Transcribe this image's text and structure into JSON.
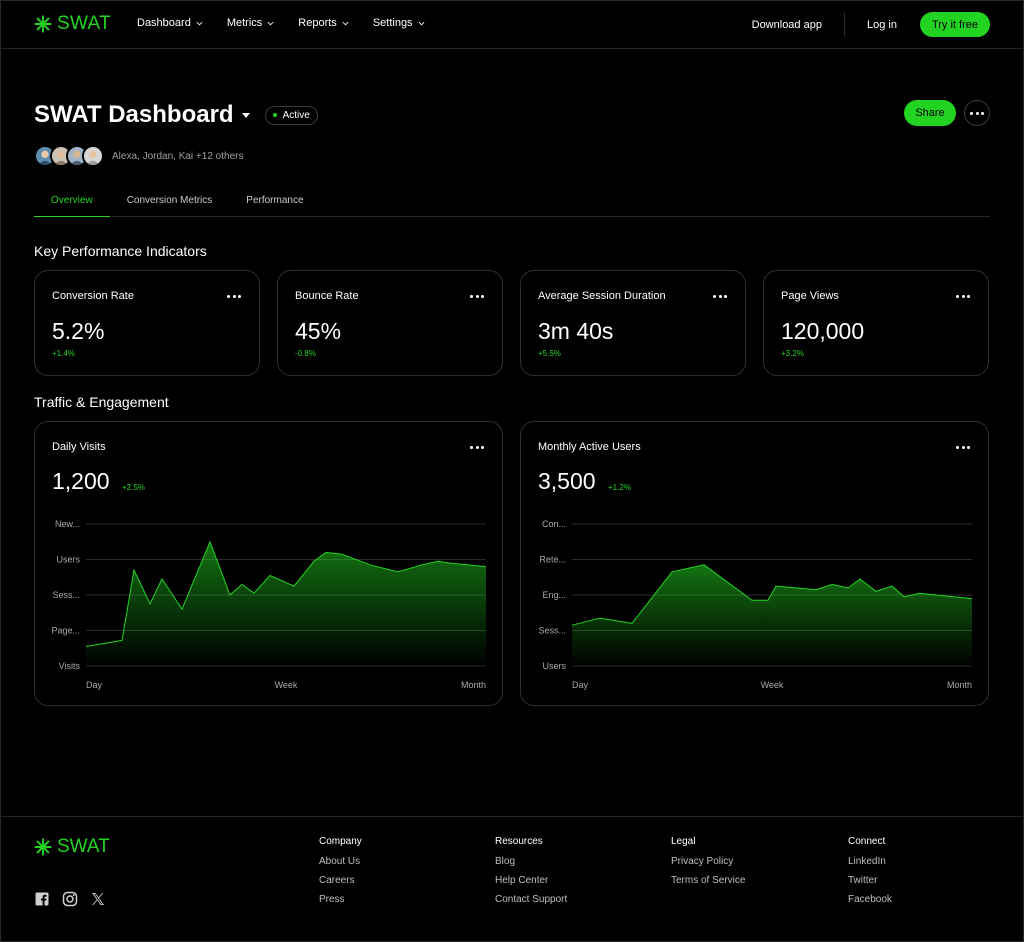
{
  "brand": {
    "name": "SWAT",
    "color": "#22d321",
    "icon": "asterisk-logo-icon"
  },
  "nav": {
    "items": [
      {
        "label": "Dashboard"
      },
      {
        "label": "Metrics"
      },
      {
        "label": "Reports"
      },
      {
        "label": "Settings"
      }
    ],
    "download": "Download app",
    "login": "Log in",
    "cta": "Try it free"
  },
  "header": {
    "title": "SWAT Dashboard",
    "status": "Active",
    "share": "Share",
    "collaborators": "Alexa, Jordan, Kai +12 others"
  },
  "tabs": [
    {
      "label": "Overview",
      "active": true
    },
    {
      "label": "Conversion Metrics",
      "active": false
    },
    {
      "label": "Performance",
      "active": false
    }
  ],
  "kpi_section_title": "Key Performance Indicators",
  "kpis": [
    {
      "label": "Conversion Rate",
      "value": "5.2%",
      "delta": "+1.4%"
    },
    {
      "label": "Bounce Rate",
      "value": "45%",
      "delta": "-0.8%"
    },
    {
      "label": "Average Session Duration",
      "value": "3m 40s",
      "delta": "+5.5%"
    },
    {
      "label": "Page Views",
      "value": "120,000",
      "delta": "+3.2%"
    }
  ],
  "traffic_section_title": "Traffic & Engagement",
  "chart_data": [
    {
      "type": "area",
      "title": "Daily Visits",
      "value": "1,200",
      "delta": "+2.5%",
      "yticks": [
        "New...",
        "Users",
        "Sess...",
        "Page...",
        "Visits"
      ],
      "xticks": [
        "Day",
        "Week",
        "Month"
      ],
      "ylim": [
        0,
        4
      ],
      "grid": true,
      "x": [
        0,
        0.09,
        0.12,
        0.16,
        0.19,
        0.24,
        0.31,
        0.36,
        0.39,
        0.42,
        0.46,
        0.52,
        0.57,
        0.6,
        0.64,
        0.71,
        0.78,
        0.84,
        0.88,
        0.91,
        1.0
      ],
      "values": [
        0.55,
        0.72,
        2.7,
        1.75,
        2.45,
        1.6,
        3.5,
        2.0,
        2.3,
        2.05,
        2.55,
        2.25,
        2.95,
        3.2,
        3.15,
        2.85,
        2.65,
        2.85,
        2.95,
        2.9,
        2.8
      ]
    },
    {
      "type": "area",
      "title": "Monthly Active Users",
      "value": "3,500",
      "delta": "+1.2%",
      "yticks": [
        "Con...",
        "Rete...",
        "Eng...",
        "Sess...",
        "Users"
      ],
      "xticks": [
        "Day",
        "Week",
        "Month"
      ],
      "ylim": [
        0,
        4
      ],
      "grid": true,
      "x": [
        0,
        0.07,
        0.15,
        0.25,
        0.33,
        0.45,
        0.49,
        0.51,
        0.56,
        0.61,
        0.65,
        0.69,
        0.72,
        0.76,
        0.8,
        0.83,
        0.87,
        0.91,
        1.0
      ],
      "values": [
        1.15,
        1.35,
        1.2,
        2.65,
        2.85,
        1.85,
        1.85,
        2.25,
        2.2,
        2.15,
        2.3,
        2.2,
        2.45,
        2.1,
        2.25,
        1.95,
        2.05,
        2.0,
        1.9
      ]
    }
  ],
  "footer": {
    "columns": [
      {
        "title": "Company",
        "links": [
          "About Us",
          "Careers",
          "Press"
        ]
      },
      {
        "title": "Resources",
        "links": [
          "Blog",
          "Help Center",
          "Contact Support"
        ]
      },
      {
        "title": "Legal",
        "links": [
          "Privacy Policy",
          "Terms of Service"
        ]
      },
      {
        "title": "Connect",
        "links": [
          "LinkedIn",
          "Twitter",
          "Facebook"
        ]
      }
    ],
    "social_icons": [
      "facebook-icon",
      "instagram-icon",
      "x-icon"
    ]
  }
}
